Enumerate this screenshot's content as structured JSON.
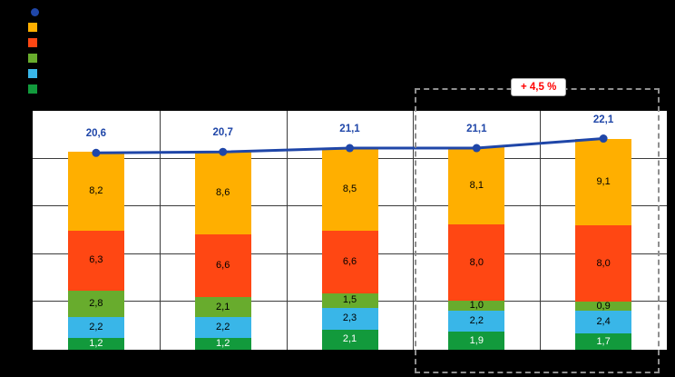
{
  "chart_data": {
    "type": "bar",
    "subtype": "stacked-bar-with-total-line",
    "categories": [
      "",
      "",
      "",
      "",
      ""
    ],
    "series": [
      {
        "name": "dark-green-bottom",
        "color": "#129A3C",
        "values": [
          1.2,
          1.2,
          2.1,
          1.9,
          1.7
        ],
        "labels": [
          "1,2",
          "1,2",
          "2,1",
          "1,9",
          "1,7"
        ],
        "label_color": "#FFFFFF"
      },
      {
        "name": "light-blue",
        "color": "#39B6E8",
        "values": [
          2.2,
          2.2,
          2.3,
          2.2,
          2.4
        ],
        "labels": [
          "2,2",
          "2,2",
          "2,3",
          "2,2",
          "2,4"
        ],
        "label_color": "#000000"
      },
      {
        "name": "green",
        "color": "#68AC2D",
        "values": [
          2.8,
          2.1,
          1.5,
          1.0,
          0.9
        ],
        "labels": [
          "2,8",
          "2,1",
          "1,5",
          "1,0",
          "0,9"
        ],
        "label_color": "#000000"
      },
      {
        "name": "orange-red",
        "color": "#FF4713",
        "values": [
          6.3,
          6.6,
          6.6,
          8.0,
          8.0
        ],
        "labels": [
          "6,3",
          "6,6",
          "6,6",
          "8,0",
          "8,0"
        ],
        "label_color": "#000000"
      },
      {
        "name": "orange",
        "color": "#FFAF00",
        "values": [
          8.2,
          8.6,
          8.5,
          8.1,
          9.1
        ],
        "labels": [
          "8,2",
          "8,6",
          "8,5",
          "8,1",
          "9,1"
        ],
        "label_color": "#000000"
      }
    ],
    "line": {
      "name": "total-line",
      "color": "#1F46A8",
      "values": [
        20.6,
        20.7,
        21.1,
        21.1,
        22.1
      ],
      "labels": [
        "20,6",
        "20,7",
        "21,1",
        "21,1",
        "22,1"
      ]
    },
    "ylim": [
      0,
      25
    ],
    "grid_step": 5,
    "grid": "on",
    "annotation": {
      "text": "+ 4,5 %",
      "color": "#FF0000"
    },
    "highlight": {
      "columns": [
        3,
        4
      ]
    }
  },
  "legend": {
    "position": "top-left",
    "items": [
      {
        "name": "total-line",
        "shape": "circle",
        "color": "#1F46A8"
      },
      {
        "name": "orange",
        "shape": "square",
        "color": "#FFAF00"
      },
      {
        "name": "orange-red",
        "shape": "square",
        "color": "#FF4713"
      },
      {
        "name": "green",
        "shape": "square",
        "color": "#68AC2D"
      },
      {
        "name": "light-blue",
        "shape": "square",
        "color": "#39B6E8"
      },
      {
        "name": "dark-green",
        "shape": "square",
        "color": "#129A3C"
      }
    ]
  }
}
